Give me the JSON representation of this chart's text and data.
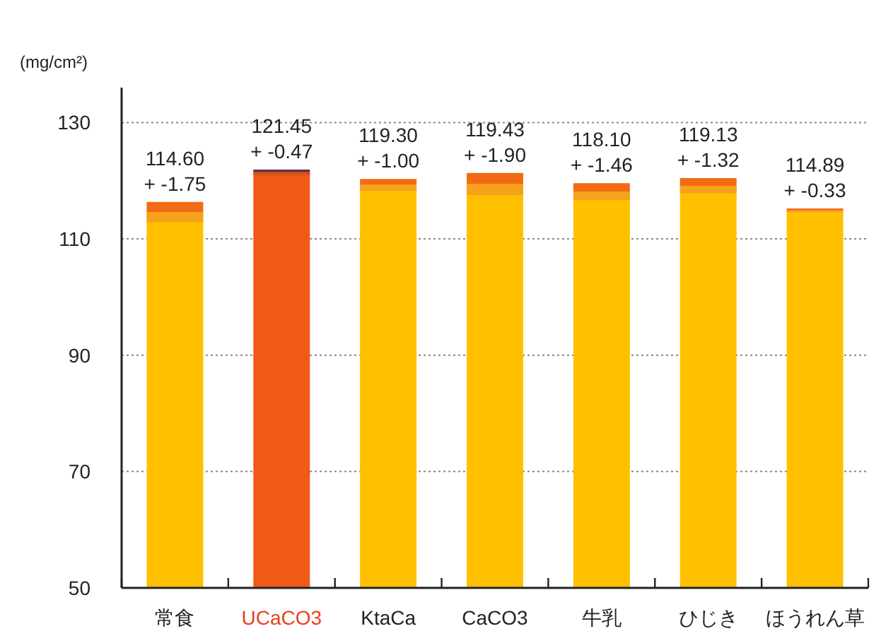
{
  "chart_data": {
    "type": "bar",
    "ylabel": "(mg/cm²)",
    "categories": [
      "常食",
      "UCaCO3",
      "KtaCa",
      "CaCO3",
      "牛乳",
      "ひじき",
      "ほうれん草"
    ],
    "values": [
      114.6,
      121.45,
      119.3,
      119.43,
      118.1,
      119.13,
      114.89
    ],
    "errors": [
      1.75,
      0.47,
      1.0,
      1.9,
      1.46,
      1.32,
      0.33
    ],
    "colors": [
      "#ffc000",
      "#f05a14",
      "#ffc000",
      "#ffc000",
      "#ffc000",
      "#ffc000",
      "#ffc000"
    ],
    "value_labels": [
      "114.60\n+ -1.75",
      "121.45\n+ -0.47",
      "119.30\n+ -1.00",
      "119.43\n+ -1.90",
      "118.10\n+ -1.46",
      "119.13\n+ -1.32",
      "114.89\n+ -0.33"
    ],
    "ylim": [
      50,
      136
    ],
    "yticks": [
      50,
      70,
      90,
      110,
      130
    ],
    "grid": "y"
  }
}
